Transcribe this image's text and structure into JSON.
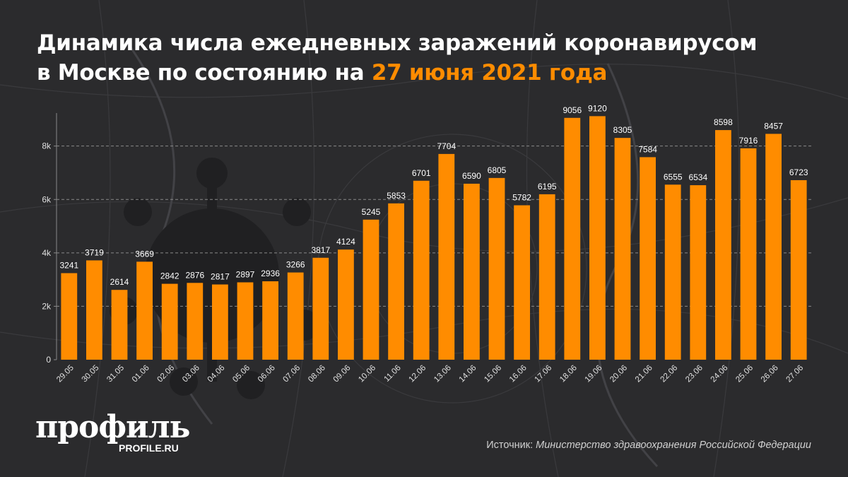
{
  "title": {
    "line1": "Динамика числа ежедневных заражений коронавирусом",
    "line2_prefix": "в Москве по состоянию на ",
    "line2_accent": "27 июня 2021 года"
  },
  "logo": {
    "text": "профиль",
    "url": "PROFILE.RU"
  },
  "source": {
    "prefix": "Источник: ",
    "name": "Министерство здравоохранения Российской Федерации"
  },
  "colors": {
    "bar": "#ff8c00",
    "accent": "#ff8c00",
    "background": "#2b2b2d"
  },
  "chart_data": {
    "type": "bar",
    "categories": [
      "29.05",
      "30.05",
      "31.05",
      "01.06",
      "02.06",
      "03.06",
      "04.06",
      "05.06",
      "06.06",
      "07.06",
      "08.06",
      "09.06",
      "10.06",
      "11.06",
      "12.06",
      "13.06",
      "14.06",
      "15.06",
      "16.06",
      "17.06",
      "18.06",
      "19.06",
      "20.06",
      "21.06",
      "22.06",
      "23.06",
      "24.06",
      "25.06",
      "26.06",
      "27.06"
    ],
    "values": [
      3241,
      3719,
      2614,
      3669,
      2842,
      2876,
      2817,
      2897,
      2936,
      3266,
      3817,
      4124,
      5245,
      5853,
      6701,
      7704,
      6590,
      6805,
      5782,
      6195,
      9056,
      9120,
      8305,
      7584,
      6555,
      6534,
      8598,
      7916,
      8457,
      6723
    ],
    "yticks": [
      0,
      2000,
      4000,
      6000,
      8000
    ],
    "ytick_labels": [
      "0",
      "2k",
      "4k",
      "6k",
      "8k"
    ],
    "ylim": [
      0,
      9500
    ],
    "xlabel": "",
    "ylabel": "",
    "grid": true,
    "legend": "none"
  }
}
